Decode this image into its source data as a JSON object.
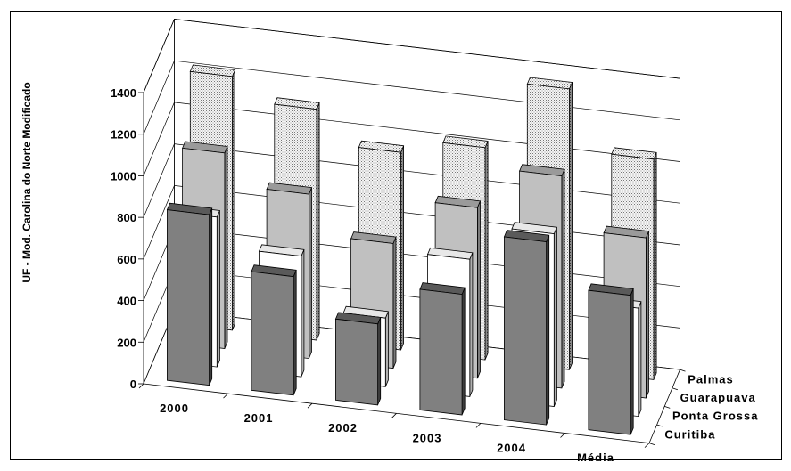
{
  "chart_data": {
    "type": "bar",
    "subtype": "3d-column",
    "title": "",
    "ylabel": "UF - Mod. Carolina do Norte Modificado",
    "xlabel": "",
    "ylim": [
      0,
      1400
    ],
    "yticks": [
      0,
      200,
      400,
      600,
      800,
      1000,
      1200,
      1400
    ],
    "categories": [
      "2000",
      "2001",
      "2002",
      "2003",
      "2004",
      "Média"
    ],
    "series": [
      {
        "name": "Curitiba",
        "values": [
          820,
          570,
          390,
          580,
          880,
          670
        ]
      },
      {
        "name": "Ponta Grossa",
        "values": [
          720,
          580,
          330,
          660,
          830,
          520
        ]
      },
      {
        "name": "Guarapuava",
        "values": [
          940,
          790,
          600,
          820,
          1020,
          770
        ]
      },
      {
        "name": "Palmas",
        "values": [
          1220,
          1110,
          950,
          1020,
          1350,
          1060
        ]
      }
    ],
    "grid": true,
    "legend": "depth-axis-labels"
  },
  "colors": {
    "Curitiba": "#808080",
    "Ponta Grossa": "#ffffff",
    "Guarapuava": "#c0c0c0",
    "Palmas": "#e6e6e6-dotted"
  }
}
